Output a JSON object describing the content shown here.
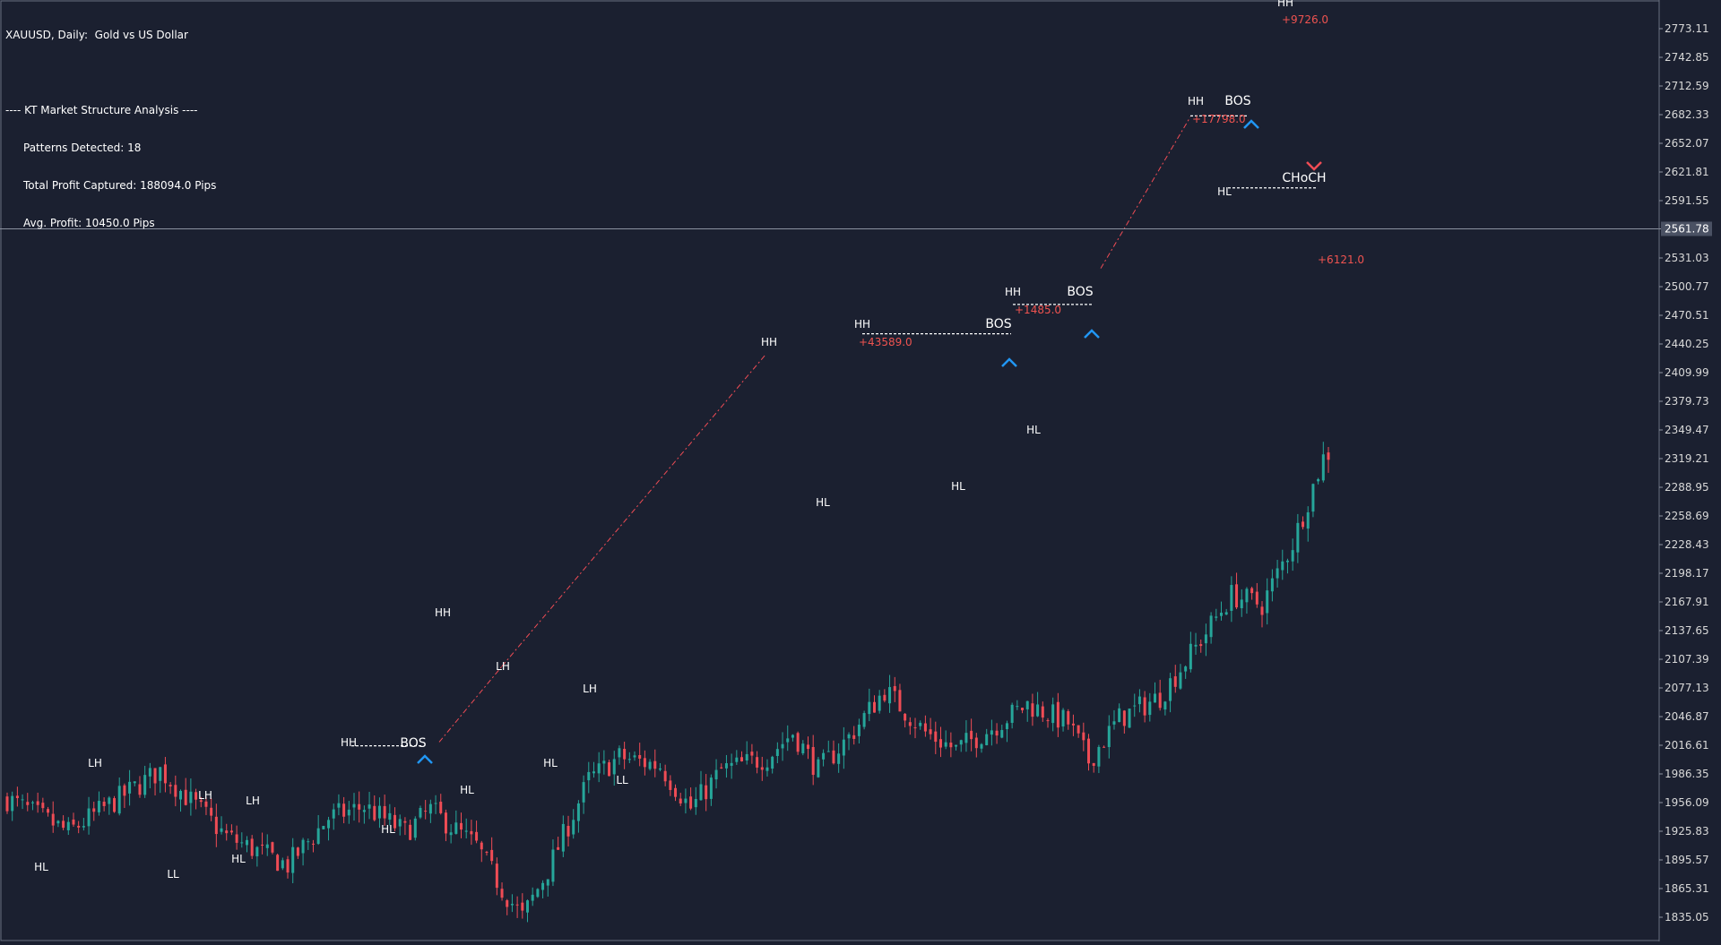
{
  "window": {
    "symbol_title": "XAUUSD, Daily:  Gold vs US Dollar"
  },
  "analysis": {
    "header": "---- KT Market Structure Analysis ----",
    "patterns_detected": "Patterns Detected: 18",
    "total_profit": "Total Profit Captured: 188094.0 Pips",
    "avg_profit": "Avg. Profit: 10450.0 Pips"
  },
  "colors": {
    "background": "#1b2030",
    "bull": "#26a69a",
    "bear": "#ef4c55",
    "axis_text": "#d8d8d8",
    "label_text": "#ffffff",
    "profit_text": "#ef5350",
    "bos_arrow": "#2196f3",
    "choch_arrow": "#ef4c55",
    "price_line": "#8c92a0",
    "current_price_box": "#4a5163"
  },
  "chart_data": {
    "type": "candlestick",
    "timeframe": "Daily",
    "ylim": [
      1817,
      2800
    ],
    "y_ticks": [
      "2773.11",
      "2742.85",
      "2712.59",
      "2682.33",
      "2652.07",
      "2621.81",
      "2591.55",
      "2561.78",
      "2531.03",
      "2500.77",
      "2470.51",
      "2440.25",
      "2409.99",
      "2379.73",
      "2349.47",
      "2319.21",
      "2288.95",
      "2258.69",
      "2228.43",
      "2198.17",
      "2167.91",
      "2137.65",
      "2107.39",
      "2077.13",
      "2046.87",
      "2016.61",
      "1986.35",
      "1956.09",
      "1925.83",
      "1895.57",
      "1865.31",
      "1835.05"
    ],
    "current_price": "2561.78",
    "current_price_value": 2561.78,
    "candle_count": 260,
    "anchors": [
      [
        0,
        1960
      ],
      [
        12,
        1925
      ],
      [
        24,
        1968
      ],
      [
        30,
        1990
      ],
      [
        43,
        1920
      ],
      [
        55,
        1890
      ],
      [
        63,
        1940
      ],
      [
        70,
        1952
      ],
      [
        78,
        1925
      ],
      [
        83,
        1948
      ],
      [
        92,
        1910
      ],
      [
        97,
        1865
      ],
      [
        101,
        1835
      ],
      [
        106,
        1885
      ],
      [
        114,
        1980
      ],
      [
        120,
        2004
      ],
      [
        128,
        1995
      ],
      [
        134,
        1950
      ],
      [
        140,
        1990
      ],
      [
        149,
        2004
      ],
      [
        154,
        2030
      ],
      [
        159,
        1990
      ],
      [
        165,
        2025
      ],
      [
        172,
        2075
      ],
      [
        180,
        2030
      ],
      [
        186,
        2012
      ],
      [
        193,
        2035
      ],
      [
        200,
        2060
      ],
      [
        208,
        2040
      ],
      [
        212,
        2000
      ],
      [
        218,
        2045
      ],
      [
        226,
        2068
      ],
      [
        233,
        2120
      ],
      [
        240,
        2175
      ],
      [
        246,
        2165
      ],
      [
        252,
        2230
      ],
      [
        258,
        2320
      ],
      [
        260,
        2330
      ]
    ],
    "labels": [
      {
        "text": "HL",
        "price": 1893
      },
      {
        "text": "LH",
        "price": 1996
      },
      {
        "text": "LL",
        "price": 1888
      },
      {
        "text": "LH",
        "price": 1958
      },
      {
        "text": "LH",
        "price": 1952
      },
      {
        "text": "HL",
        "price": 1903
      },
      {
        "text": "HH",
        "price": 2018
      },
      {
        "text": "HL",
        "price": 1936
      },
      {
        "text": "HH",
        "price": 2086
      },
      {
        "text": "HL",
        "price": 1968
      },
      {
        "text": "LH",
        "price": 2101
      },
      {
        "text": "HL",
        "price": 1999
      },
      {
        "text": "LH",
        "price": 2077
      },
      {
        "text": "LL",
        "price": 1980
      },
      {
        "text": "HH",
        "price": 2437
      },
      {
        "text": "HL",
        "price": 2279
      },
      {
        "text": "HH",
        "price": 2451
      },
      {
        "text": "HL",
        "price": 2291
      },
      {
        "text": "HH",
        "price": 2485
      },
      {
        "text": "HL",
        "price": 2344
      },
      {
        "text": "HH",
        "price": 2684
      },
      {
        "text": "HL",
        "price": 2597
      },
      {
        "text": "HH",
        "price": 2790
      }
    ],
    "structure_labels": [
      {
        "text": "BOS",
        "price": 2016
      },
      {
        "text": "BOS",
        "price": 2454
      },
      {
        "text": "BOS",
        "price": 2488
      },
      {
        "text": "BOS",
        "price": 2685
      },
      {
        "text": "CHoCH",
        "price": 2608
      }
    ],
    "profit_labels": [
      {
        "text": "+43589.0"
      },
      {
        "text": "+1485.0"
      },
      {
        "text": "+17798.0"
      },
      {
        "text": "+9726.0"
      },
      {
        "text": "+6121.0"
      }
    ]
  }
}
